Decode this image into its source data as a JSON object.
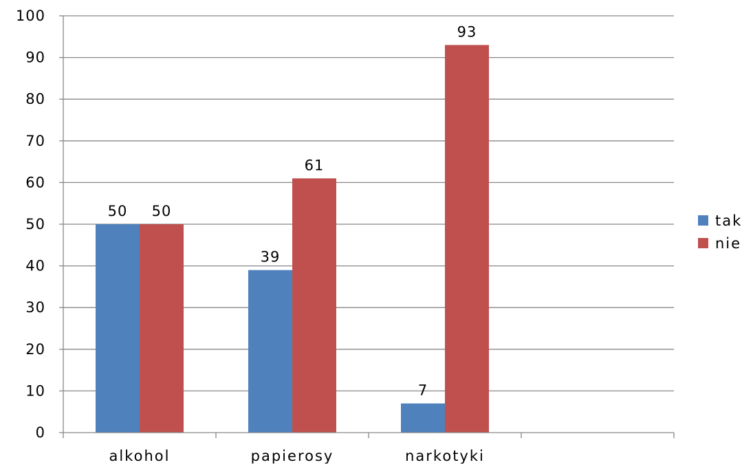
{
  "chart_data": {
    "type": "bar",
    "categories": [
      "alkohol",
      "papierosy",
      "narkotyki",
      ""
    ],
    "series": [
      {
        "name": "tak",
        "values": [
          50,
          39,
          7,
          null
        ],
        "color": "#4F81BD"
      },
      {
        "name": "nie",
        "values": [
          50,
          61,
          93,
          null
        ],
        "color": "#C0504D"
      }
    ],
    "ylim": [
      0,
      100
    ],
    "yticks": [
      0,
      10,
      20,
      30,
      40,
      50,
      60,
      70,
      80,
      90,
      100
    ],
    "grid": true,
    "legend": "right",
    "data_labels": true,
    "title": "",
    "xlabel": "",
    "ylabel": ""
  }
}
